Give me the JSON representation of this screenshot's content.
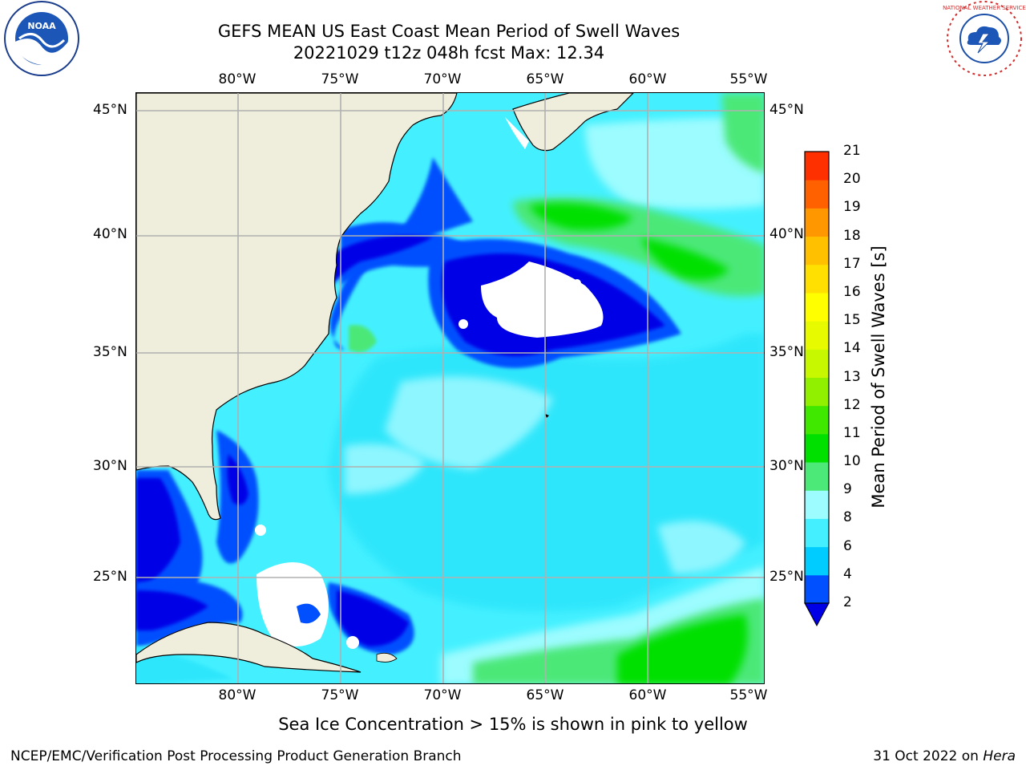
{
  "header": {
    "title_line1": "GEFS MEAN US East Coast Mean Period of Swell Waves",
    "title_line2": "20221029 t12z 048h fcst   Max: 12.34"
  },
  "logos": {
    "left": "NOAA",
    "right": "NATIONAL WEATHER SERVICE"
  },
  "map": {
    "lon_labels": [
      "80°W",
      "75°W",
      "70°W",
      "65°W",
      "60°W",
      "55°W"
    ],
    "lat_labels": [
      "45°N",
      "40°N",
      "35°N",
      "30°N",
      "25°N"
    ],
    "colors": {
      "land": "#efeedd",
      "coast": "#000000",
      "grid": "#b0b0b0",
      "missing": "#ffffff"
    }
  },
  "colorbar": {
    "label": "Mean Period of Swell Waves [s]",
    "ticks": [
      "2",
      "4",
      "6",
      "8",
      "9",
      "10",
      "11",
      "12",
      "13",
      "14",
      "15",
      "16",
      "17",
      "18",
      "19",
      "20",
      "21"
    ],
    "colors": [
      "#0050ff",
      "#00ccff",
      "#44f0ff",
      "#9cfcff",
      "#4ce878",
      "#00e000",
      "#40e800",
      "#90f000",
      "#c8f800",
      "#e8fa00",
      "#ffff00",
      "#ffe000",
      "#ffc000",
      "#ff9800",
      "#ff6000",
      "#ff3000",
      "#ff0000"
    ],
    "under_color": "#0000e6"
  },
  "footer": {
    "caption": "Sea Ice Concentration > 15% is shown in pink to yellow",
    "left": "NCEP/EMC/Verification Post Processing Product Generation Branch",
    "right_date": "31 Oct 2022 on ",
    "right_host": "Hera"
  }
}
